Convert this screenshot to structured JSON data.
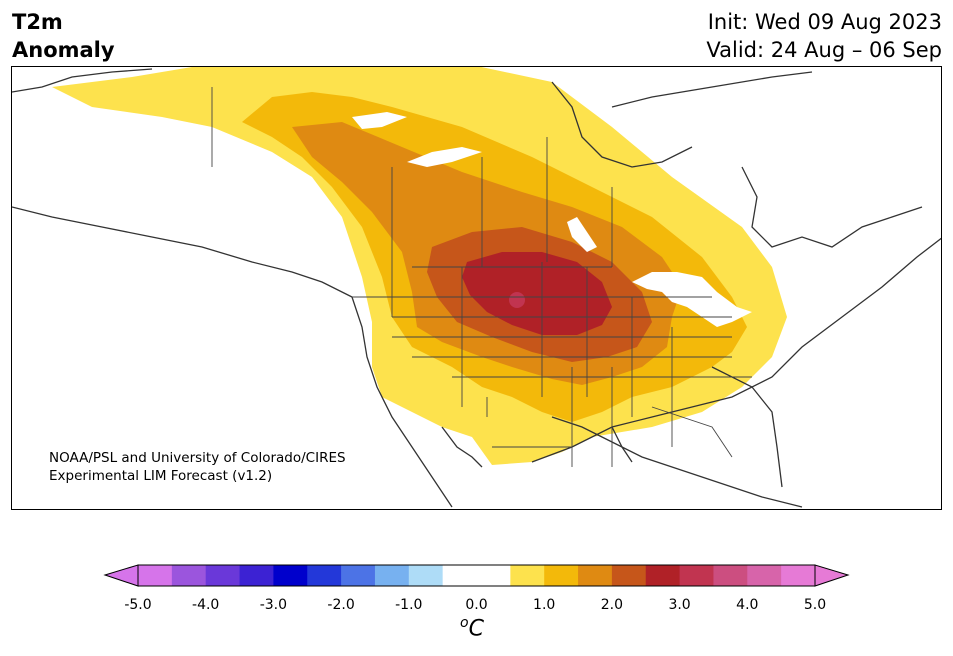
{
  "header": {
    "variable_line1": "T2m",
    "variable_line2": "Anomaly",
    "init": "Init: Wed 09 Aug 2023",
    "valid": "Valid: 24 Aug – 06 Sep"
  },
  "credit": {
    "line1": "NOAA/PSL and University of Colorado/CIRES",
    "line2": "Experimental LIM Forecast (v1.2)"
  },
  "colorbar": {
    "unit_base": "C",
    "unit_sup": "o",
    "ticks": [
      "-5.0",
      "-4.0",
      "-3.0",
      "-2.0",
      "-1.0",
      "0.0",
      "1.0",
      "2.0",
      "3.0",
      "4.0",
      "5.0"
    ],
    "colors": [
      "#d674ea",
      "#9b55dd",
      "#6a38d9",
      "#3c22d3",
      "#0000cc",
      "#2338d9",
      "#4c73e6",
      "#77b1f0",
      "#aedcf7",
      "#ffffff",
      "#ffffff",
      "#fde24d",
      "#f3b90a",
      "#df8a12",
      "#c6561a",
      "#b02127",
      "#c13450",
      "#cc4e80",
      "#d764aa",
      "#e67ad6"
    ],
    "underflow_color": "#d674ea",
    "overflow_color": "#e67ad6"
  },
  "map": {
    "region": "North America",
    "anomaly_levels": {
      "0.5-1.0": "#fde24d",
      "1.0-1.5": "#f3b90a",
      "1.5-2.0": "#df8a12",
      "2.0-2.5": "#c6561a",
      "2.5-3.0": "#b02127",
      "3.0-3.5": "#c13450"
    }
  }
}
